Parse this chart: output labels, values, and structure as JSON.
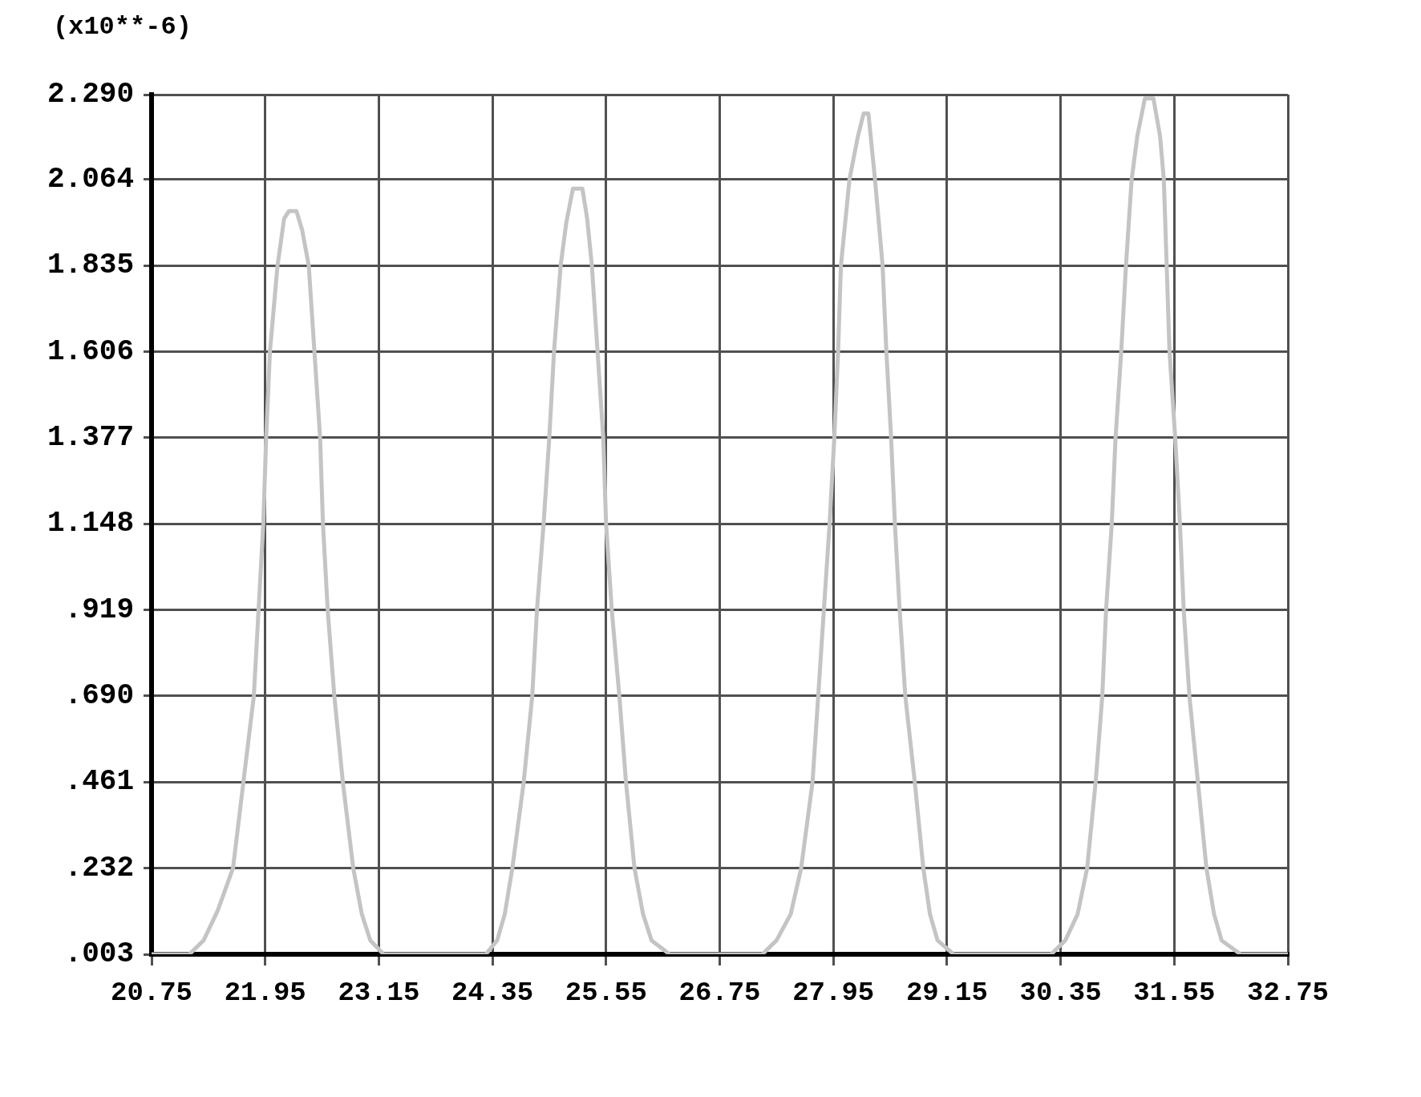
{
  "chart_data": {
    "type": "line",
    "ylabel": "(x10**-6)",
    "x": [
      20.75,
      21.15,
      21.3,
      21.45,
      21.61,
      21.72,
      21.83,
      21.88,
      21.93,
      21.96,
      22.0,
      22.08,
      22.15,
      22.2,
      22.28,
      22.34,
      22.41,
      22.47,
      22.53,
      22.56,
      22.61,
      22.68,
      22.77,
      22.88,
      22.97,
      23.06,
      23.2,
      24.28,
      24.4,
      24.48,
      24.56,
      24.68,
      24.77,
      24.82,
      24.89,
      24.95,
      25.0,
      25.07,
      25.13,
      25.2,
      25.3,
      25.35,
      25.4,
      25.46,
      25.52,
      25.55,
      25.61,
      25.69,
      25.76,
      25.85,
      25.94,
      26.03,
      26.22,
      27.2,
      27.35,
      27.5,
      27.61,
      27.73,
      27.79,
      27.85,
      27.91,
      27.96,
      28.0,
      28.03,
      28.12,
      28.21,
      28.27,
      28.32,
      28.39,
      28.47,
      28.51,
      28.56,
      28.6,
      28.65,
      28.71,
      28.81,
      28.9,
      28.97,
      29.05,
      29.22,
      30.25,
      30.4,
      30.53,
      30.63,
      30.72,
      30.79,
      30.83,
      30.89,
      30.93,
      30.99,
      31.04,
      31.1,
      31.16,
      31.24,
      31.33,
      31.4,
      31.44,
      31.47,
      31.5,
      31.56,
      31.61,
      31.65,
      31.71,
      31.8,
      31.89,
      31.97,
      32.05,
      32.25,
      32.75
    ],
    "values": [
      0.003,
      0.003,
      0.04,
      0.12,
      0.232,
      0.461,
      0.69,
      0.919,
      1.148,
      1.377,
      1.606,
      1.835,
      1.96,
      1.98,
      1.98,
      1.93,
      1.835,
      1.606,
      1.377,
      1.148,
      0.919,
      0.69,
      0.461,
      0.232,
      0.11,
      0.04,
      0.003,
      0.003,
      0.04,
      0.11,
      0.232,
      0.461,
      0.69,
      0.919,
      1.148,
      1.377,
      1.606,
      1.835,
      1.95,
      2.04,
      2.04,
      1.96,
      1.835,
      1.606,
      1.377,
      1.148,
      0.919,
      0.69,
      0.461,
      0.232,
      0.11,
      0.04,
      0.003,
      0.003,
      0.04,
      0.11,
      0.232,
      0.461,
      0.69,
      0.919,
      1.148,
      1.377,
      1.606,
      1.835,
      2.064,
      2.18,
      2.24,
      2.24,
      2.064,
      1.835,
      1.606,
      1.377,
      1.148,
      0.919,
      0.69,
      0.461,
      0.232,
      0.11,
      0.04,
      0.003,
      0.003,
      0.04,
      0.11,
      0.232,
      0.461,
      0.69,
      0.919,
      1.148,
      1.377,
      1.606,
      1.835,
      2.064,
      2.18,
      2.28,
      2.28,
      2.18,
      2.064,
      1.835,
      1.606,
      1.377,
      1.148,
      0.919,
      0.69,
      0.461,
      0.232,
      0.11,
      0.04,
      0.003,
      0.003
    ],
    "color": "#c4c4c4",
    "xlim": [
      20.75,
      32.75
    ],
    "xticks": [
      20.75,
      21.95,
      23.15,
      24.35,
      25.55,
      26.75,
      27.95,
      29.15,
      30.35,
      31.55,
      32.75
    ],
    "ylim": [
      0.003,
      2.29
    ],
    "yticks": [
      {
        "value": 0.003,
        "label": ".003"
      },
      {
        "value": 0.232,
        "label": ".232"
      },
      {
        "value": 0.461,
        "label": ".461"
      },
      {
        "value": 0.69,
        "label": ".690"
      },
      {
        "value": 0.919,
        "label": ".919"
      },
      1.148,
      1.377,
      1.606,
      1.835,
      2.064,
      {
        "value": 2.29,
        "label": "2.290"
      }
    ],
    "grid": true
  }
}
